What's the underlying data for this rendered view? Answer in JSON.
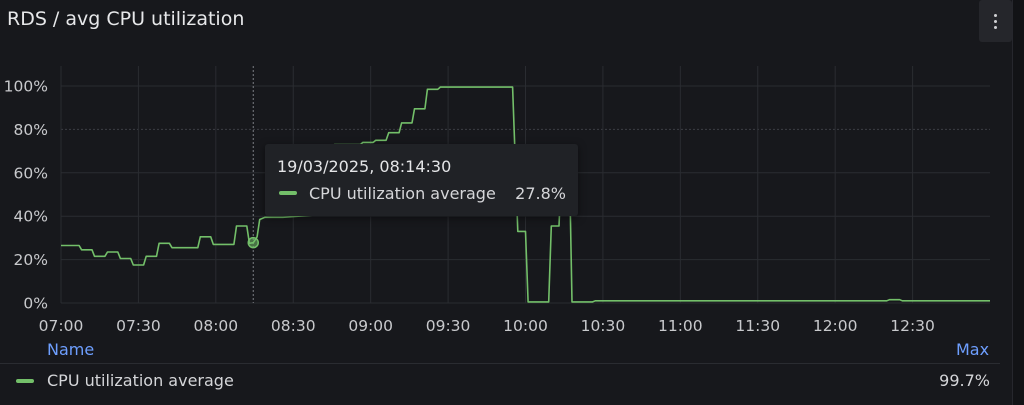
{
  "panel": {
    "title": "RDS / avg CPU utilization",
    "menu_icon": "kebab-menu-icon"
  },
  "tooltip": {
    "time": "19/03/2025, 08:14:30",
    "series_name": "CPU utilization average",
    "value": "27.8%"
  },
  "legend": {
    "name_header": "Name",
    "max_header": "Max",
    "rows": [
      {
        "name": "CPU utilization average",
        "max": "99.7%"
      }
    ]
  },
  "colors": {
    "series": "#73bf69",
    "link": "#6e9fff",
    "background": "#17181c"
  },
  "chart_data": {
    "type": "line",
    "title": "RDS / avg CPU utilization",
    "xlabel": "",
    "ylabel": "",
    "x_ticks": [
      "07:00",
      "07:30",
      "08:00",
      "08:30",
      "09:00",
      "09:30",
      "10:00",
      "10:30",
      "11:00",
      "11:30",
      "12:00",
      "12:30"
    ],
    "y_ticks": [
      "0%",
      "20%",
      "40%",
      "60%",
      "80%",
      "100%"
    ],
    "xlim": [
      "07:00",
      "13:00"
    ],
    "ylim": [
      0,
      100
    ],
    "grid": true,
    "legend_position": "bottom",
    "hover_time": "08:14:30",
    "series": [
      {
        "name": "CPU utilization average",
        "color": "#73bf69",
        "points": [
          [
            "07:00",
            26.5
          ],
          [
            "07:07",
            26.5
          ],
          [
            "07:08",
            24.5
          ],
          [
            "07:12",
            24.5
          ],
          [
            "07:13",
            21.5
          ],
          [
            "07:17",
            21.5
          ],
          [
            "07:18",
            23.5
          ],
          [
            "07:22",
            23.5
          ],
          [
            "07:23",
            20.5
          ],
          [
            "07:27",
            20.5
          ],
          [
            "07:28",
            17.5
          ],
          [
            "07:32",
            17.5
          ],
          [
            "07:33",
            21.5
          ],
          [
            "07:37",
            21.5
          ],
          [
            "07:38",
            27.5
          ],
          [
            "07:42",
            27.5
          ],
          [
            "07:43",
            25.5
          ],
          [
            "07:53",
            25.5
          ],
          [
            "07:54",
            30.5
          ],
          [
            "07:58",
            30.5
          ],
          [
            "07:59",
            27
          ],
          [
            "08:07",
            27
          ],
          [
            "08:08",
            35.5
          ],
          [
            "08:12",
            35.5
          ],
          [
            "08:13",
            27.5
          ],
          [
            "08:14:30",
            27.8
          ],
          [
            "08:16",
            30.5
          ],
          [
            "08:17",
            38.5
          ],
          [
            "08:19",
            39.5
          ],
          [
            "08:26",
            39.5
          ],
          [
            "08:44",
            41
          ],
          [
            "08:46",
            73
          ],
          [
            "08:56",
            73
          ],
          [
            "08:57",
            74
          ],
          [
            "09:01",
            74
          ],
          [
            "09:02",
            75
          ],
          [
            "09:06",
            75
          ],
          [
            "09:07",
            78.5
          ],
          [
            "09:11",
            78.5
          ],
          [
            "09:12",
            83
          ],
          [
            "09:16",
            83
          ],
          [
            "09:17",
            89.5
          ],
          [
            "09:21",
            89.5
          ],
          [
            "09:22",
            98.5
          ],
          [
            "09:26",
            98.5
          ],
          [
            "09:27",
            99.5
          ],
          [
            "09:55",
            99.5
          ],
          [
            "09:57",
            33
          ],
          [
            "10:00",
            33
          ],
          [
            "10:01",
            0.5
          ],
          [
            "10:09",
            0.5
          ],
          [
            "10:10",
            35.5
          ],
          [
            "10:13",
            35.5
          ],
          [
            "10:14",
            64.5
          ],
          [
            "10:17",
            64.5
          ],
          [
            "10:18",
            0.5
          ],
          [
            "10:26",
            0.5
          ],
          [
            "10:27",
            1
          ],
          [
            "12:20",
            1
          ],
          [
            "12:21",
            1.5
          ],
          [
            "12:25",
            1.5
          ],
          [
            "12:26",
            1
          ],
          [
            "13:00",
            1
          ]
        ]
      }
    ]
  }
}
